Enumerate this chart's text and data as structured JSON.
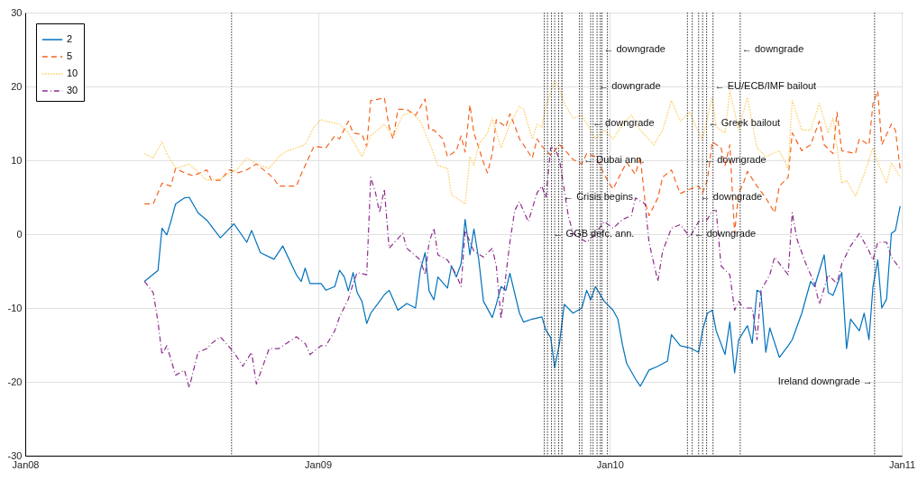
{
  "chart_data": {
    "type": "line",
    "xlim": [
      "2008-01-01",
      "2011-01-01"
    ],
    "xticks": [
      {
        "value": "2008-01-01",
        "label": "Jan08"
      },
      {
        "value": "2009-01-01",
        "label": "Jan09"
      },
      {
        "value": "2010-01-01",
        "label": "Jan10"
      },
      {
        "value": "2011-01-01",
        "label": "Jan11"
      }
    ],
    "ylim": [
      -30,
      30
    ],
    "yticks": [
      -30,
      -20,
      -10,
      0,
      10,
      20,
      30
    ],
    "grid": true,
    "legend": "top left",
    "series": [
      {
        "name": "2",
        "color": "#0072bd",
        "line_style": "solid",
        "x": [
          "2008-05-29",
          "2008-06-15",
          "2008-06-20",
          "2008-06-26",
          "2008-07-01",
          "2008-07-07",
          "2008-07-18",
          "2008-07-24",
          "2008-08-04",
          "2008-08-15",
          "2008-09-01",
          "2008-09-18",
          "2008-10-04",
          "2008-10-10",
          "2008-10-21",
          "2008-11-07",
          "2008-11-18",
          "2008-12-05",
          "2008-12-11",
          "2008-12-16",
          "2008-12-22",
          "2009-01-05",
          "2009-01-11",
          "2009-01-22",
          "2009-01-28",
          "2009-02-03",
          "2009-02-08",
          "2009-02-14",
          "2009-02-19",
          "2009-02-25",
          "2009-03-03",
          "2009-03-08",
          "2009-03-19",
          "2009-03-25",
          "2009-03-31",
          "2009-04-11",
          "2009-04-22",
          "2009-05-03",
          "2009-05-09",
          "2009-05-15",
          "2009-05-20",
          "2009-05-26",
          "2009-05-31",
          "2009-06-12",
          "2009-06-17",
          "2009-06-23",
          "2009-06-29",
          "2009-07-04",
          "2009-07-10",
          "2009-07-15",
          "2009-07-21",
          "2009-07-27",
          "2009-08-07",
          "2009-08-12",
          "2009-08-18",
          "2009-08-24",
          "2009-08-29",
          "2009-09-10",
          "2009-09-15",
          "2009-09-26",
          "2009-10-08",
          "2009-10-13",
          "2009-10-19",
          "2009-10-24",
          "2009-10-30",
          "2009-11-05",
          "2009-11-16",
          "2009-11-27",
          "2009-12-03",
          "2009-12-08",
          "2009-12-14",
          "2009-12-25",
          "2010-01-05",
          "2010-01-11",
          "2010-01-17",
          "2010-01-22",
          "2010-02-02",
          "2010-02-08",
          "2010-02-19",
          "2010-03-02",
          "2010-03-14",
          "2010-03-19",
          "2010-03-30",
          "2010-04-11",
          "2010-04-22",
          "2010-04-27",
          "2010-05-03",
          "2010-05-09",
          "2010-05-14",
          "2010-05-25",
          "2010-05-31",
          "2010-06-06",
          "2010-06-11",
          "2010-06-22",
          "2010-06-28",
          "2010-07-04",
          "2010-07-09",
          "2010-07-15",
          "2010-07-20",
          "2010-08-01",
          "2010-08-12",
          "2010-08-17",
          "2010-08-29",
          "2010-09-09",
          "2010-09-14",
          "2010-09-26",
          "2010-10-01",
          "2010-10-07",
          "2010-10-18",
          "2010-10-24",
          "2010-10-29",
          "2010-11-09",
          "2010-11-15",
          "2010-11-21",
          "2010-11-26",
          "2010-12-02",
          "2010-12-07",
          "2010-12-13",
          "2010-12-19",
          "2010-12-24",
          "2010-12-30"
        ],
        "values": [
          -6.4,
          -4.9,
          0.8,
          -0.1,
          1.7,
          4.1,
          4.9,
          5.0,
          2.9,
          1.9,
          -0.5,
          1.4,
          -1.1,
          0.5,
          -2.5,
          -3.4,
          -1.6,
          -5.5,
          -6.4,
          -4.6,
          -6.7,
          -6.7,
          -7.6,
          -7.1,
          -4.9,
          -5.8,
          -7.7,
          -5.2,
          -7.9,
          -9.1,
          -12.1,
          -10.7,
          -9.1,
          -8.2,
          -7.6,
          -10.3,
          -9.4,
          -10.0,
          -4.9,
          -2.5,
          -7.7,
          -8.9,
          -5.8,
          -7.3,
          -4.3,
          -5.8,
          -4.0,
          2.0,
          -2.8,
          0.7,
          -3.4,
          -9.1,
          -11.3,
          -9.5,
          -7.1,
          -7.6,
          -5.3,
          -10.7,
          -11.9,
          -11.5,
          -11.2,
          -13.0,
          -14.0,
          -18.1,
          -14.8,
          -9.5,
          -10.7,
          -10.0,
          -7.6,
          -8.9,
          -7.1,
          -9.1,
          -10.3,
          -11.5,
          -15.1,
          -17.5,
          -19.6,
          -20.6,
          -18.4,
          -17.9,
          -17.2,
          -13.6,
          -15.1,
          -15.4,
          -16.0,
          -13.0,
          -10.7,
          -10.3,
          -13.1,
          -16.3,
          -11.9,
          -18.8,
          -14.3,
          -12.4,
          -14.8,
          -7.6,
          -7.9,
          -16.0,
          -12.7,
          -16.7,
          -15.1,
          -14.3,
          -10.7,
          -6.4,
          -7.1,
          -2.8,
          -7.9,
          -8.3,
          -5.2,
          -15.5,
          -11.5,
          -13.1,
          -10.7,
          -14.3,
          -7.1,
          -3.5,
          -10.0,
          -8.8,
          0.1,
          0.5,
          3.8
        ]
      },
      {
        "name": "5",
        "color": "#f5631e",
        "line_style": "dashed",
        "x": [
          "2008-05-29",
          "2008-06-09",
          "2008-06-20",
          "2008-07-01",
          "2008-07-07",
          "2008-07-18",
          "2008-07-29",
          "2008-08-15",
          "2008-08-21",
          "2008-09-01",
          "2008-09-12",
          "2008-09-23",
          "2008-10-04",
          "2008-10-16",
          "2008-11-01",
          "2008-11-07",
          "2008-11-13",
          "2008-12-05",
          "2008-12-11",
          "2008-12-16",
          "2008-12-27",
          "2009-01-11",
          "2009-01-22",
          "2009-01-28",
          "2009-02-08",
          "2009-02-14",
          "2009-02-25",
          "2009-03-03",
          "2009-03-08",
          "2009-03-19",
          "2009-03-25",
          "2009-03-31",
          "2009-04-05",
          "2009-04-11",
          "2009-04-22",
          "2009-05-03",
          "2009-05-15",
          "2009-05-20",
          "2009-05-26",
          "2009-06-06",
          "2009-06-12",
          "2009-06-23",
          "2009-06-29",
          "2009-07-04",
          "2009-07-10",
          "2009-07-15",
          "2009-07-21",
          "2009-07-27",
          "2009-08-01",
          "2009-08-07",
          "2009-08-12",
          "2009-08-24",
          "2009-08-29",
          "2009-09-04",
          "2009-09-10",
          "2009-09-15",
          "2009-09-26",
          "2009-10-02",
          "2009-10-08",
          "2009-10-19",
          "2009-10-24",
          "2009-10-30",
          "2009-11-05",
          "2009-11-16",
          "2009-11-27",
          "2009-12-03",
          "2009-12-14",
          "2009-12-25",
          "2009-12-31",
          "2010-01-05",
          "2010-01-17",
          "2010-01-22",
          "2010-02-02",
          "2010-02-08",
          "2010-02-14",
          "2010-02-19",
          "2010-03-02",
          "2010-03-08",
          "2010-03-19",
          "2010-03-25",
          "2010-03-30",
          "2010-04-11",
          "2010-04-22",
          "2010-04-27",
          "2010-05-03",
          "2010-05-09",
          "2010-05-20",
          "2010-05-25",
          "2010-05-31",
          "2010-06-06",
          "2010-06-11",
          "2010-06-17",
          "2010-06-22",
          "2010-07-04",
          "2010-07-15",
          "2010-07-26",
          "2010-08-01",
          "2010-08-12",
          "2010-08-17",
          "2010-08-29",
          "2010-09-09",
          "2010-09-20",
          "2010-09-26",
          "2010-10-07",
          "2010-10-12",
          "2010-10-18",
          "2010-11-04",
          "2010-11-09",
          "2010-11-21",
          "2010-11-26",
          "2010-12-02",
          "2010-12-07",
          "2010-12-19",
          "2010-12-24",
          "2010-12-30"
        ],
        "values": [
          4.1,
          4.1,
          6.9,
          6.5,
          8.9,
          8.3,
          7.9,
          8.7,
          7.3,
          7.3,
          8.7,
          8.3,
          8.7,
          9.5,
          8.1,
          7.5,
          6.5,
          6.5,
          8.1,
          9.3,
          11.9,
          11.7,
          13.3,
          12.9,
          15.3,
          13.7,
          13.5,
          11.9,
          18.1,
          18.3,
          18.5,
          14.5,
          12.9,
          16.9,
          16.9,
          16.1,
          18.3,
          14.1,
          14.1,
          12.9,
          10.5,
          11.3,
          13.3,
          11.1,
          17.5,
          13.7,
          11.7,
          9.7,
          8.3,
          10.9,
          15.5,
          14.5,
          16.3,
          14.7,
          12.9,
          12.1,
          10.3,
          12.9,
          11.9,
          10.7,
          11.3,
          12.1,
          11.5,
          10.1,
          9.5,
          10.9,
          10.5,
          8.1,
          6.9,
          6.1,
          8.7,
          9.7,
          8.1,
          10.5,
          4.4,
          2.5,
          4.9,
          7.7,
          8.7,
          6.9,
          5.5,
          6.1,
          6.5,
          5.6,
          7.3,
          12.5,
          11.7,
          9.3,
          12.1,
          0.1,
          5.6,
          6.9,
          8.5,
          6.5,
          4.9,
          2.9,
          6.5,
          7.7,
          13.7,
          11.3,
          12.1,
          15.3,
          12.1,
          10.9,
          16.5,
          11.3,
          10.9,
          12.9,
          12.1,
          17.7,
          19.4,
          12.1,
          14.9,
          14.1,
          8.9
        ]
      },
      {
        "name": "10",
        "color": "#ffc957",
        "line_style": "dotted",
        "x": [
          "2008-05-29",
          "2008-06-09",
          "2008-06-20",
          "2008-06-26",
          "2008-07-07",
          "2008-07-24",
          "2008-08-15",
          "2008-09-01",
          "2008-09-23",
          "2008-10-04",
          "2008-10-21",
          "2008-11-01",
          "2008-11-13",
          "2008-11-24",
          "2008-12-16",
          "2008-12-27",
          "2009-01-05",
          "2009-01-11",
          "2009-01-28",
          "2009-02-08",
          "2009-02-25",
          "2009-03-08",
          "2009-03-25",
          "2009-04-05",
          "2009-04-17",
          "2009-04-28",
          "2009-05-09",
          "2009-05-15",
          "2009-05-20",
          "2009-05-31",
          "2009-06-12",
          "2009-06-17",
          "2009-06-23",
          "2009-07-04",
          "2009-07-10",
          "2009-07-15",
          "2009-07-21",
          "2009-08-01",
          "2009-08-07",
          "2009-08-18",
          "2009-08-29",
          "2009-09-10",
          "2009-09-15",
          "2009-09-26",
          "2009-10-02",
          "2009-10-08",
          "2009-10-13",
          "2009-10-24",
          "2009-10-30",
          "2009-11-05",
          "2009-11-16",
          "2009-11-27",
          "2009-12-14",
          "2009-12-25",
          "2010-01-05",
          "2010-01-17",
          "2010-01-28",
          "2010-02-08",
          "2010-02-25",
          "2010-03-08",
          "2010-03-19",
          "2010-03-30",
          "2010-04-11",
          "2010-04-22",
          "2010-04-27",
          "2010-05-09",
          "2010-05-14",
          "2010-05-25",
          "2010-05-31",
          "2010-06-11",
          "2010-06-22",
          "2010-07-04",
          "2010-07-15",
          "2010-08-01",
          "2010-08-12",
          "2010-08-17",
          "2010-08-29",
          "2010-09-09",
          "2010-09-20",
          "2010-10-01",
          "2010-10-07",
          "2010-10-18",
          "2010-10-24",
          "2010-11-04",
          "2010-11-15",
          "2010-11-26",
          "2010-12-02",
          "2010-12-13",
          "2010-12-19",
          "2010-12-30"
        ],
        "values": [
          10.9,
          10.3,
          12.5,
          10.9,
          8.9,
          9.5,
          7.3,
          7.5,
          8.9,
          10.3,
          9.3,
          8.9,
          10.5,
          11.3,
          12.1,
          14.5,
          15.5,
          15.3,
          14.9,
          13.7,
          10.5,
          13.3,
          14.9,
          13.3,
          16.1,
          16.5,
          15.3,
          13.7,
          12.5,
          9.3,
          8.9,
          5.3,
          4.9,
          4.1,
          10.5,
          9.3,
          12.1,
          13.7,
          15.7,
          11.7,
          14.9,
          17.3,
          16.9,
          12.9,
          14.9,
          14.5,
          17.3,
          20.7,
          19.7,
          17.7,
          15.7,
          16.1,
          12.9,
          14.1,
          12.9,
          14.9,
          16.1,
          14.1,
          12.1,
          14.1,
          18.1,
          15.3,
          16.5,
          13.7,
          12.9,
          18.5,
          14.5,
          13.7,
          19.4,
          14.1,
          18.5,
          11.7,
          10.5,
          11.3,
          8.9,
          18.1,
          14.1,
          14.1,
          17.7,
          13.7,
          15.7,
          6.9,
          7.3,
          5.1,
          8.1,
          11.7,
          9.7,
          6.9,
          9.7,
          7.7
        ]
      },
      {
        "name": "30",
        "color": "#8e2c8e",
        "line_style": "dashdot",
        "x": [
          "2008-05-29",
          "2008-06-09",
          "2008-06-15",
          "2008-06-20",
          "2008-06-26",
          "2008-07-07",
          "2008-07-18",
          "2008-07-24",
          "2008-08-04",
          "2008-08-15",
          "2008-08-21",
          "2008-09-01",
          "2008-09-18",
          "2008-09-29",
          "2008-10-10",
          "2008-10-16",
          "2008-10-21",
          "2008-11-01",
          "2008-11-13",
          "2008-12-05",
          "2008-12-16",
          "2008-12-22",
          "2009-01-05",
          "2009-01-11",
          "2009-01-22",
          "2009-01-28",
          "2009-02-08",
          "2009-02-14",
          "2009-02-19",
          "2009-03-03",
          "2009-03-08",
          "2009-03-14",
          "2009-03-19",
          "2009-03-25",
          "2009-03-31",
          "2009-04-17",
          "2009-04-22",
          "2009-05-09",
          "2009-05-15",
          "2009-05-20",
          "2009-05-26",
          "2009-05-31",
          "2009-06-12",
          "2009-06-23",
          "2009-06-29",
          "2009-07-04",
          "2009-07-15",
          "2009-07-27",
          "2009-08-07",
          "2009-08-12",
          "2009-08-18",
          "2009-08-24",
          "2009-08-29",
          "2009-09-04",
          "2009-09-10",
          "2009-09-21",
          "2009-10-02",
          "2009-10-08",
          "2009-10-13",
          "2009-10-19",
          "2009-10-24",
          "2009-10-30",
          "2009-11-10",
          "2009-11-16",
          "2009-11-27",
          "2009-12-03",
          "2009-12-14",
          "2009-12-25",
          "2010-01-05",
          "2010-01-17",
          "2010-01-28",
          "2010-02-02",
          "2010-02-14",
          "2010-02-19",
          "2010-02-25",
          "2010-03-02",
          "2010-03-08",
          "2010-03-19",
          "2010-03-30",
          "2010-04-11",
          "2010-04-22",
          "2010-05-03",
          "2010-05-09",
          "2010-05-14",
          "2010-05-20",
          "2010-05-31",
          "2010-06-06",
          "2010-06-11",
          "2010-06-17",
          "2010-06-28",
          "2010-07-04",
          "2010-07-09",
          "2010-07-20",
          "2010-07-26",
          "2010-08-06",
          "2010-08-12",
          "2010-08-17",
          "2010-08-23",
          "2010-09-03",
          "2010-09-14",
          "2010-09-20",
          "2010-10-01",
          "2010-10-12",
          "2010-10-18",
          "2010-10-29",
          "2010-11-09",
          "2010-11-21",
          "2010-11-26",
          "2010-12-02",
          "2010-12-13",
          "2010-12-19",
          "2010-12-30"
        ],
        "values": [
          -6.4,
          -7.9,
          -11.9,
          -16.3,
          -15.1,
          -19.1,
          -18.4,
          -20.8,
          -16.0,
          -15.5,
          -14.8,
          -13.9,
          -16.0,
          -17.9,
          -16.0,
          -20.3,
          -18.8,
          -15.5,
          -15.5,
          -13.9,
          -14.8,
          -16.3,
          -15.1,
          -15.1,
          -13.1,
          -11.2,
          -8.8,
          -6.7,
          -5.2,
          -5.5,
          7.7,
          5.6,
          2.9,
          6.1,
          -1.9,
          0.1,
          -1.9,
          -3.5,
          -5.5,
          -1.1,
          0.8,
          -2.8,
          -3.5,
          -5.5,
          -7.1,
          0.5,
          -2.3,
          -3.1,
          -1.9,
          -4.3,
          -11.5,
          -5.5,
          -1.1,
          3.2,
          4.4,
          1.7,
          5.6,
          6.5,
          4.9,
          11.7,
          11.7,
          10.1,
          2.5,
          0.1,
          -0.7,
          -1.1,
          0.1,
          1.7,
          0.8,
          2.0,
          2.5,
          4.9,
          4.1,
          -1.1,
          -4.0,
          -6.4,
          -2.3,
          0.8,
          1.3,
          -0.4,
          1.7,
          2.0,
          3.2,
          3.2,
          -4.3,
          -5.5,
          -10.3,
          -9.1,
          -10.0,
          -10.0,
          -14.3,
          -7.6,
          -5.5,
          -3.1,
          -4.7,
          -5.5,
          2.9,
          -0.7,
          -4.0,
          -6.7,
          -9.5,
          -5.5,
          -6.7,
          -4.0,
          -1.6,
          0.1,
          -2.3,
          -3.5,
          -1.1,
          -1.1,
          -3.1,
          -4.7
        ]
      }
    ],
    "ref_lines": [
      {
        "axis": "x",
        "value": "2008-09-15",
        "line_style": "dotted",
        "color": "#333333"
      },
      {
        "axis": "x",
        "value": "2009-10-11",
        "line_style": "dotted",
        "color": "#333333"
      },
      {
        "axis": "x",
        "value": "2009-10-15",
        "line_style": "dotted",
        "color": "#333333"
      },
      {
        "axis": "x",
        "value": "2009-10-20",
        "line_style": "dotted",
        "color": "#333333"
      },
      {
        "axis": "x",
        "value": "2009-10-24",
        "line_style": "dotted",
        "color": "#333333"
      },
      {
        "axis": "x",
        "value": "2009-10-29",
        "line_style": "dotted",
        "color": "#333333"
      },
      {
        "axis": "x",
        "value": "2009-11-02",
        "line_style": "dotted",
        "color": "#000000"
      },
      {
        "axis": "x",
        "value": "2009-11-24",
        "line_style": "dotted",
        "color": "#333333"
      },
      {
        "axis": "x",
        "value": "2009-11-27",
        "line_style": "dotted",
        "color": "#333333"
      },
      {
        "axis": "x",
        "value": "2009-12-08",
        "line_style": "dotted",
        "color": "#333333"
      },
      {
        "axis": "x",
        "value": "2009-12-11",
        "line_style": "dotted",
        "color": "#333333"
      },
      {
        "axis": "x",
        "value": "2009-12-16",
        "line_style": "dotted",
        "color": "#333333"
      },
      {
        "axis": "x",
        "value": "2009-12-20",
        "line_style": "dotted",
        "color": "#333333"
      },
      {
        "axis": "x",
        "value": "2009-12-22",
        "line_style": "dotted",
        "color": "#333333"
      },
      {
        "axis": "x",
        "value": "2009-12-29",
        "line_style": "dotted",
        "color": "#333333"
      },
      {
        "axis": "x",
        "value": "2010-04-08",
        "line_style": "dotted",
        "color": "#333333"
      },
      {
        "axis": "x",
        "value": "2010-04-14",
        "line_style": "dotted",
        "color": "#333333"
      },
      {
        "axis": "x",
        "value": "2010-04-22",
        "line_style": "dotted",
        "color": "#333333"
      },
      {
        "axis": "x",
        "value": "2010-04-27",
        "line_style": "dotted",
        "color": "#333333"
      },
      {
        "axis": "x",
        "value": "2010-05-02",
        "line_style": "dotted",
        "color": "#333333"
      },
      {
        "axis": "x",
        "value": "2010-05-10",
        "line_style": "dotted",
        "color": "#333333"
      },
      {
        "axis": "x",
        "value": "2010-06-13",
        "line_style": "dotted",
        "color": "#333333"
      },
      {
        "axis": "x",
        "value": "2010-11-28",
        "line_style": "dotted",
        "color": "#333333"
      }
    ],
    "annotations": [
      {
        "text": "← GGB defc. ann.",
        "x": "2009-10-20",
        "y": 0
      },
      {
        "text": "← Crisis begins",
        "x": "2009-11-02",
        "y": 5
      },
      {
        "text": "← Dubai ann.",
        "x": "2009-11-27",
        "y": 10
      },
      {
        "text": "← downgrade",
        "x": "2009-12-08",
        "y": 15
      },
      {
        "text": "← downgrade",
        "x": "2009-12-16",
        "y": 20
      },
      {
        "text": "← downgrade",
        "x": "2009-12-22",
        "y": 25
      },
      {
        "text": "← downgrade",
        "x": "2010-04-14",
        "y": 0
      },
      {
        "text": "← downgrade",
        "x": "2010-04-22",
        "y": 5
      },
      {
        "text": "← downgrade",
        "x": "2010-04-27",
        "y": 10
      },
      {
        "text": "← Greek bailout",
        "x": "2010-05-02",
        "y": 15
      },
      {
        "text": "← EU/ECB/IMF bailout",
        "x": "2010-05-10",
        "y": 20
      },
      {
        "text": "← downgrade",
        "x": "2010-06-13",
        "y": 25
      },
      {
        "text": "Ireland downgrade →",
        "x": "2010-11-28",
        "y": -20
      }
    ]
  }
}
